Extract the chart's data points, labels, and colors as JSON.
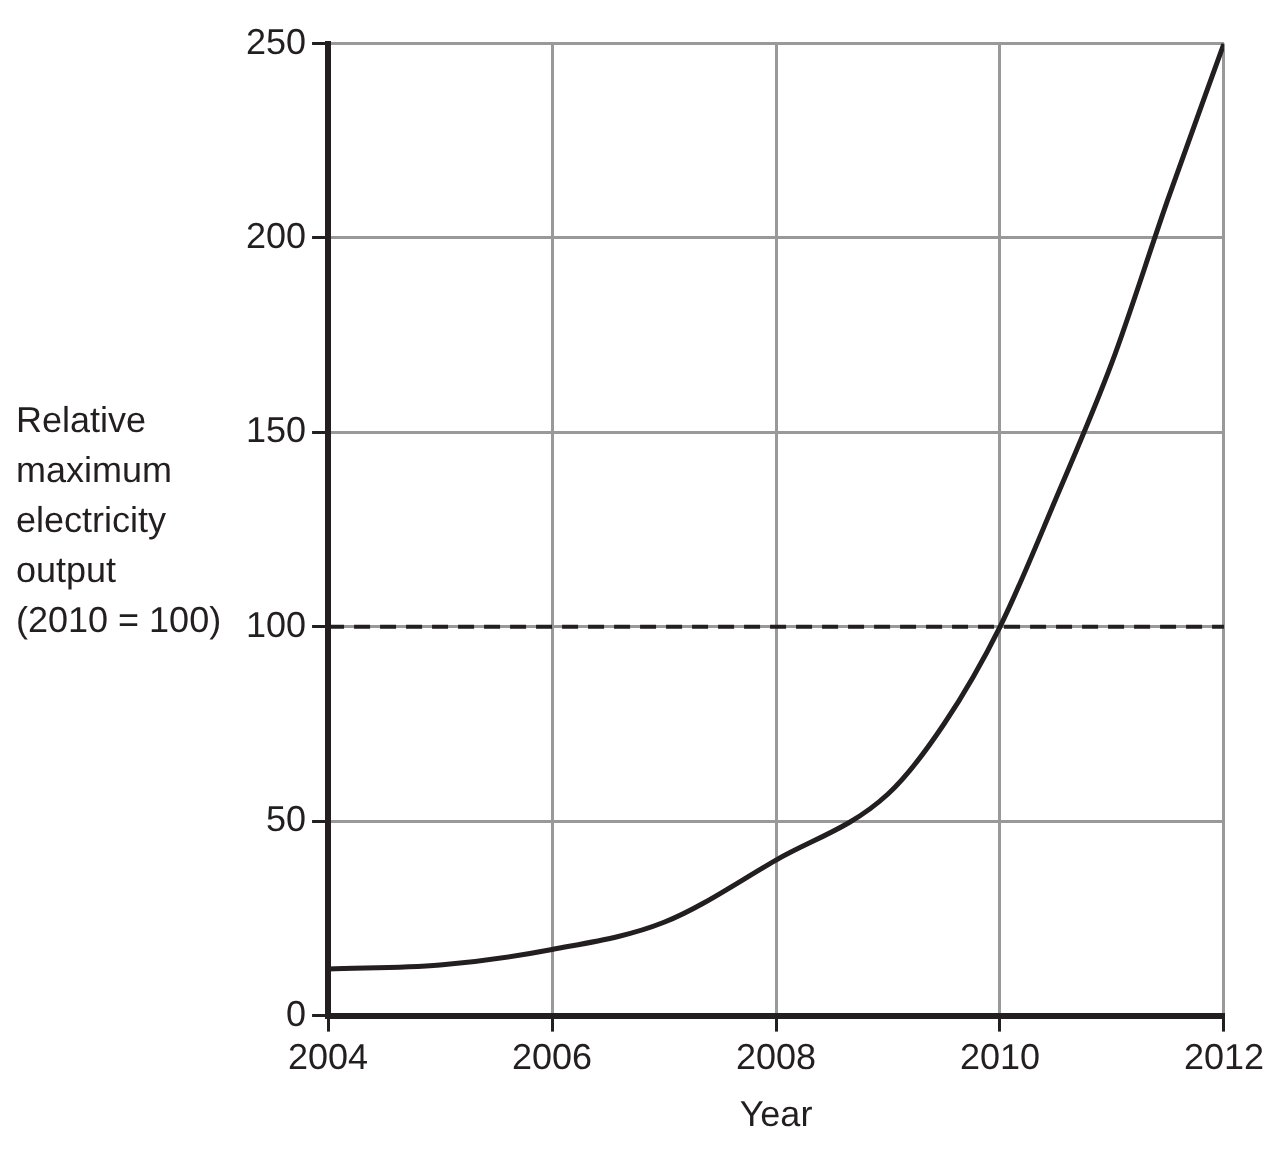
{
  "chart_data": {
    "type": "line",
    "xlabel": "Year",
    "ylabel": "Relative\nmaximum\nelectricity\noutput\n(2010 = 100)",
    "x": [
      2004,
      2005,
      2006,
      2007,
      2008,
      2009,
      2009.5,
      2010,
      2010.5,
      2011,
      2011.5,
      2012
    ],
    "series": [
      {
        "color": "#231f20",
        "values": [
          12,
          13,
          17,
          24,
          40,
          57,
          75,
          100,
          133,
          168,
          210,
          250
        ]
      }
    ],
    "xlim": [
      2004,
      2012
    ],
    "xticks": [
      2004,
      2006,
      2008,
      2010,
      2012
    ],
    "ylim": [
      0,
      250
    ],
    "yticks": [
      0,
      50,
      100,
      150,
      200,
      250
    ],
    "grid": true,
    "legend": false,
    "marker": "none",
    "line_style": "solid",
    "ref_lines": [
      {
        "axis": "y",
        "value": 100,
        "color": "#231f20",
        "line_style": "dashed"
      }
    ]
  }
}
